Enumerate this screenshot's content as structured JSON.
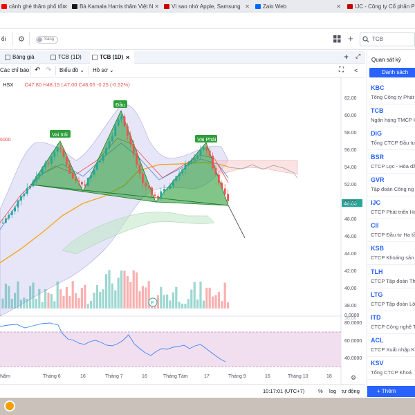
{
  "browser_tabs": [
    {
      "label": "cảnh ghé thăm phố tổn",
      "fav_color": "#ff0000"
    },
    {
      "label": "Bà Kamala Harris thăm Việt N",
      "fav_color": "#1a1a1a"
    },
    {
      "label": "Vì sao nhớ Apple, Samsung",
      "fav_color": "#cc0000"
    },
    {
      "label": "Zalo Web",
      "fav_color": "#0068ff"
    },
    {
      "label": "IJC - Công ty Cổ phần Ph",
      "fav_color": "#cc0000"
    }
  ],
  "app_toolbar": {
    "left_text": "ổi",
    "toggle_label": "Sáng",
    "search_placeholder": "TCB"
  },
  "chart_tabs": [
    {
      "label": "Bảng giá",
      "active": false
    },
    {
      "label": "TCB (1D)",
      "active": false
    },
    {
      "label": "TCB (1D)",
      "active": true
    }
  ],
  "chart_toolbar": {
    "indicators": "Các chỉ báo",
    "chart_type": "Biểu đồ",
    "profile": "Hồ sơ"
  },
  "legend": {
    "exchange": "HSX",
    "open": "O47.80",
    "high": "H48.15",
    "low": "L47.00",
    "close": "C48.05",
    "change": "-0.25 (-0.52%)",
    "left_value": "6000"
  },
  "annotations": {
    "left_shoulder": "Vai trái",
    "head": "Đầu",
    "right_shoulder": "Vai Phải"
  },
  "price_axis": {
    "ticks": [
      "62.00",
      "60.00",
      "58.00",
      "56.00",
      "54.00",
      "52.00",
      "50.00",
      "48.00",
      "46.00",
      "44.00",
      "42.00",
      "40.00",
      "38.00",
      "36.00"
    ],
    "last_price": "48.05",
    "volume_zero": "0.0000"
  },
  "rsi_axis": {
    "ticks": [
      "80.0000",
      "60.0000",
      "40.0000"
    ]
  },
  "time_axis": [
    "Năm",
    "Tháng 6",
    "16",
    "Tháng 7",
    "16",
    "Tháng Tám",
    "17",
    "Tháng 9",
    "16",
    "Tháng 10",
    "18"
  ],
  "footer": {
    "clock": "10:17:01 (UTC+7)",
    "percent": "%",
    "log": "log",
    "auto": "tự động"
  },
  "watchlist": {
    "title": "Quan sát kỳ",
    "list_button": "Danh sách",
    "add_button": "+ Thêm",
    "items": [
      {
        "code": "KBC",
        "name": "Tổng Công ty Phát"
      },
      {
        "code": "TCB",
        "name": "Ngân hàng TMCP K"
      },
      {
        "code": "DIG",
        "name": "Tổng CTCP Đầu tư"
      },
      {
        "code": "BSR",
        "name": "CTCP Lọc - Hóa dầ"
      },
      {
        "code": "GVR",
        "name": "Tập đoàn Công ng"
      },
      {
        "code": "IJC",
        "name": "CTCP Phát triển Hạ"
      },
      {
        "code": "CII",
        "name": "CTCP Đầu tư Hạ tầ"
      },
      {
        "code": "KSB",
        "name": "CTCP Khoáng sản"
      },
      {
        "code": "TLH",
        "name": "CTCP Tập đoàn Th"
      },
      {
        "code": "LTG",
        "name": "CTCP Tập đoàn Lộ"
      },
      {
        "code": "ITD",
        "name": "CTCP Công nghệ T"
      },
      {
        "code": "ACL",
        "name": "CTCP Xuất nhập K"
      },
      {
        "code": "KSV",
        "name": "Tổng CTCP Khoá"
      }
    ]
  },
  "colors": {
    "up": "#26a69a",
    "down": "#ef5350",
    "accent": "#2962ff",
    "pattern_fill": "#2e9e3a",
    "rsi_bg": "#f1dff0"
  }
}
